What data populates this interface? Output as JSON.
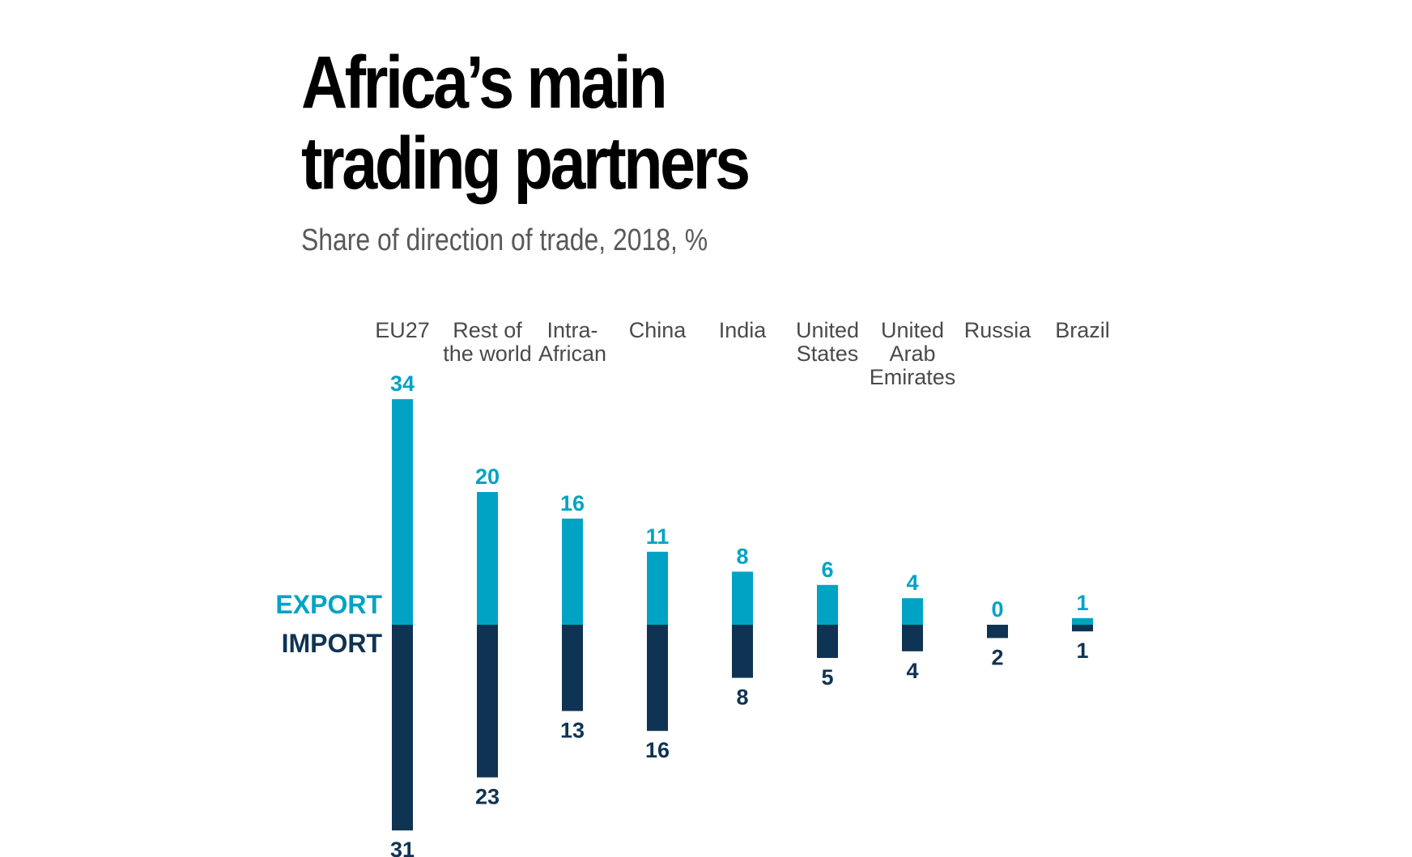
{
  "chart_data": {
    "type": "bar",
    "title_lines": [
      "Africa’s main",
      "trading partners"
    ],
    "subtitle": "Share of direction of trade, 2018, %",
    "categories": [
      [
        "EU27"
      ],
      [
        "Rest of",
        "the world"
      ],
      [
        "Intra-",
        "African"
      ],
      [
        "China"
      ],
      [
        "India"
      ],
      [
        "United",
        "States"
      ],
      [
        "United",
        "Arab",
        "Emirates"
      ],
      [
        "Russia"
      ],
      [
        "Brazil"
      ]
    ],
    "series": [
      {
        "name": "EXPORT",
        "color": "#00a3c4",
        "values": [
          34,
          20,
          16,
          11,
          8,
          6,
          4,
          0,
          1
        ]
      },
      {
        "name": "IMPORT",
        "color": "#0f3353",
        "values": [
          31,
          23,
          13,
          16,
          8,
          5,
          4,
          2,
          1
        ]
      }
    ]
  }
}
